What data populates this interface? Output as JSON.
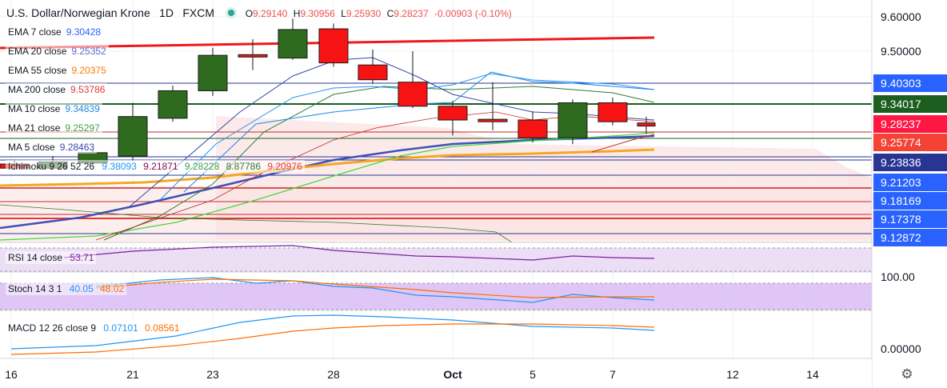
{
  "header": {
    "symbol_title": "U.S. Dollar/Norwegian Krone",
    "interval": "1D",
    "source": "FXCM",
    "ohlc": {
      "o_label": "O",
      "o_value": "9.29140",
      "h_label": "H",
      "h_value": "9.30956",
      "l_label": "L",
      "l_value": "9.25930",
      "c_label": "C",
      "c_value": "9.28237",
      "change": "-0.00903 (-0.10%)"
    }
  },
  "indicators": [
    {
      "label": "EMA 7 close",
      "value": "9.30428",
      "color": "#2962ff"
    },
    {
      "label": "EMA 20 close",
      "value": "9.25352",
      "color": "#5b6bd0"
    },
    {
      "label": "EMA 55 close",
      "value": "9.20375",
      "color": "#f57c00"
    },
    {
      "label": "MA 200 close",
      "value": "9.53786",
      "color": "#e53935"
    },
    {
      "label": "MA 10 close",
      "value": "9.34839",
      "color": "#1e88e5"
    },
    {
      "label": "MA 21 close",
      "value": "9.25297",
      "color": "#43a047"
    },
    {
      "label": "MA 5 close",
      "value": "9.28463",
      "color": "#3949ab"
    }
  ],
  "ichimoku": {
    "label": "Ichimoku 9 26 52 26",
    "values": [
      "9.38093",
      "9.21871",
      "9.28228",
      "8.87786",
      "9.20976"
    ],
    "colors": [
      "#2196f3",
      "#880e4f",
      "#43a047",
      "#2e7d32",
      "#e53935"
    ]
  },
  "rsi": {
    "label": "RSI 14 close",
    "value": "53.71",
    "color": "#7b1fa2"
  },
  "stoch": {
    "label": "Stoch 14 3 1",
    "k": "40.05",
    "d": "48.02",
    "k_color": "#2196f3",
    "d_color": "#ff6d00"
  },
  "macd": {
    "label": "MACD 12 26 close 9",
    "macd": "0.07101",
    "signal": "0.08561",
    "macd_color": "#2196f3",
    "signal_color": "#ff6d00"
  },
  "settings_icon": "gear-icon",
  "chart_data": {
    "type": "candlestick",
    "x_ticks": [
      "16",
      "21",
      "23",
      "28",
      "Oct",
      "5",
      "7",
      "12",
      "14"
    ],
    "y_ticks": [
      "9.60000",
      "9.50000"
    ],
    "rsi_ticks": [],
    "osc_ticks": [
      "100.00"
    ],
    "macd_ticks": [
      "0.00000"
    ],
    "price_labels": [
      {
        "value": "9.40303",
        "bg": "#2962ff",
        "fg": "#ffffff"
      },
      {
        "value": "9.34017",
        "bg": "#1b5e20",
        "fg": "#ffffff"
      },
      {
        "value": "9.28237",
        "bg": "#ff1744",
        "fg": "#ffffff"
      },
      {
        "value": "9.25774",
        "bg": "#f44336",
        "fg": "#ffffff"
      },
      {
        "value": "9.23836",
        "bg": "#283593",
        "fg": "#ffffff"
      },
      {
        "value": "9.21203",
        "bg": "#2962ff",
        "fg": "#ffffff"
      },
      {
        "value": "9.18169",
        "bg": "#2962ff",
        "fg": "#ffffff"
      },
      {
        "value": "9.17378",
        "bg": "#2962ff",
        "fg": "#ffffff"
      },
      {
        "value": "9.12872",
        "bg": "#2962ff",
        "fg": "#ffffff"
      }
    ],
    "candles": [
      {
        "date": "Sep 16",
        "o": 9.172,
        "h": 9.185,
        "l": 9.155,
        "c": 9.16
      },
      {
        "date": "Sep 17",
        "o": 9.16,
        "h": 9.195,
        "l": 9.155,
        "c": 9.178
      },
      {
        "date": "Sep 18",
        "o": 9.175,
        "h": 9.215,
        "l": 9.17,
        "c": 9.205
      },
      {
        "date": "Sep 21",
        "o": 9.195,
        "h": 9.35,
        "l": 9.18,
        "c": 9.31
      },
      {
        "date": "Sep 22",
        "o": 9.305,
        "h": 9.4,
        "l": 9.295,
        "c": 9.385
      },
      {
        "date": "Sep 23",
        "o": 9.385,
        "h": 9.51,
        "l": 9.37,
        "c": 9.488
      },
      {
        "date": "Sep 24",
        "o": 9.49,
        "h": 9.535,
        "l": 9.445,
        "c": 9.484
      },
      {
        "date": "Sep 25",
        "o": 9.48,
        "h": 9.595,
        "l": 9.475,
        "c": 9.563
      },
      {
        "date": "Sep 28",
        "o": 9.565,
        "h": 9.58,
        "l": 9.455,
        "c": 9.466
      },
      {
        "date": "Sep 29",
        "o": 9.46,
        "h": 9.505,
        "l": 9.405,
        "c": 9.417
      },
      {
        "date": "Sep 30",
        "o": 9.41,
        "h": 9.5,
        "l": 9.335,
        "c": 9.34
      },
      {
        "date": "Oct 1",
        "o": 9.34,
        "h": 9.355,
        "l": 9.255,
        "c": 9.3
      },
      {
        "date": "Oct 2",
        "o": 9.302,
        "h": 9.41,
        "l": 9.27,
        "c": 9.298
      },
      {
        "date": "Oct 5",
        "o": 9.3,
        "h": 9.325,
        "l": 9.235,
        "c": 9.248
      },
      {
        "date": "Oct 6",
        "o": 9.248,
        "h": 9.36,
        "l": 9.23,
        "c": 9.35
      },
      {
        "date": "Oct 7",
        "o": 9.35,
        "h": 9.365,
        "l": 9.285,
        "c": 9.295
      },
      {
        "date": "Oct 8",
        "o": 9.2914,
        "h": 9.30956,
        "l": 9.2593,
        "c": 9.28237
      }
    ]
  }
}
